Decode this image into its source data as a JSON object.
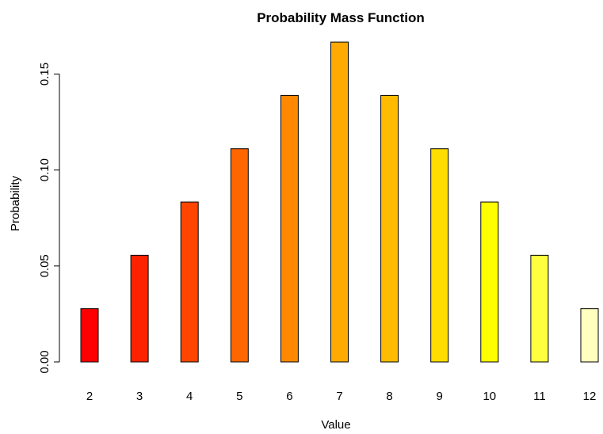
{
  "chart_data": {
    "type": "bar",
    "title": "Probability Mass Function",
    "xlabel": "Value",
    "ylabel": "Probability",
    "categories": [
      "2",
      "3",
      "4",
      "5",
      "6",
      "7",
      "8",
      "9",
      "10",
      "11",
      "12"
    ],
    "values": [
      0.02778,
      0.05556,
      0.08333,
      0.11111,
      0.13889,
      0.16667,
      0.13889,
      0.11111,
      0.08333,
      0.05556,
      0.02778
    ],
    "colors": [
      "#FF0000",
      "#FF2200",
      "#FF4500",
      "#FF6600",
      "#FF8800",
      "#FFAA00",
      "#FFBB00",
      "#FFDD00",
      "#FFFF00",
      "#FFFF40",
      "#FFFFBF"
    ],
    "ylim": [
      0,
      0.17
    ],
    "yticks": [
      "0.00",
      "0.05",
      "0.10",
      "0.15"
    ],
    "ytick_values": [
      0,
      0.05,
      0.1,
      0.15
    ],
    "bar_border_color": "#000000",
    "grid": false
  }
}
